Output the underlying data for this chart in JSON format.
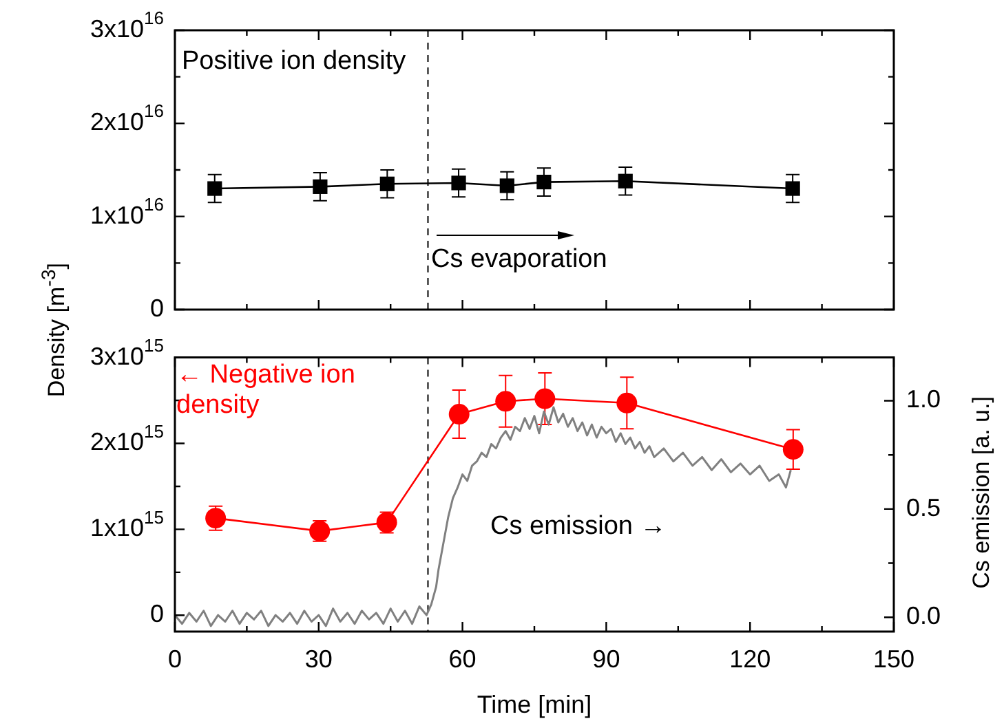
{
  "chart_data": [
    {
      "type": "line",
      "ylabel": "Density [m$^{-3}$]",
      "xlim": [
        0,
        150
      ],
      "xticks": [
        0,
        30,
        60,
        90,
        120,
        150
      ],
      "ylim": [
        0,
        3e+16
      ],
      "yticks": [
        0,
        {
          "value": 1e+16,
          "label": "1x10$^{16}$"
        },
        {
          "value": 2e+16,
          "label": "2x10$^{16}$"
        },
        {
          "value": 3e+16,
          "label": "3x10$^{16}$"
        }
      ],
      "tick_labels": "y",
      "grid": false,
      "legend": "top left",
      "series": [
        {
          "name": "Positive ion density",
          "color": "#000000",
          "marker": "square",
          "x": [
            8.3,
            30.3,
            44.3,
            59.2,
            69.3,
            77,
            94,
            128.9
          ],
          "values": [
            1.3e+16,
            1.32e+16,
            1.35e+16,
            1.36e+16,
            1.33e+16,
            1.37e+16,
            1.38e+16,
            1.3e+16
          ],
          "errors": [
            1500000000000000.0,
            1500000000000000.0,
            1500000000000000.0,
            1500000000000000.0,
            1500000000000000.0,
            1500000000000000.0,
            1500000000000000.0,
            1500000000000000.0
          ]
        }
      ],
      "ref_lines": [
        {
          "axis": "x",
          "value": 52.8,
          "line_style": "dashed",
          "color": "#000000"
        }
      ],
      "annotations": [
        "Cs evaporation"
      ]
    },
    {
      "type": "line",
      "xlabel": "Time [min]",
      "y2label": "Cs emission [a. u.]",
      "xlim": [
        0,
        150
      ],
      "xticks": [
        0,
        30,
        60,
        90,
        120,
        150
      ],
      "ylim": [
        -190000000000000.0,
        3000000000000000.0
      ],
      "yticks": [
        0,
        {
          "value": 1000000000000000.0,
          "label": "1x10$^{15}$"
        },
        {
          "value": 2000000000000000.0,
          "label": "2x10$^{15}$"
        },
        {
          "value": 3000000000000000.0,
          "label": "3x10$^{15}$"
        }
      ],
      "y2lim": [
        -0.066,
        1.2
      ],
      "y2ticks": [
        {
          "value": 0,
          "label": "0.0"
        },
        {
          "value": 0.5,
          "label": "0.5"
        },
        {
          "value": 1,
          "label": "1.0"
        }
      ],
      "grid": false,
      "legend": false,
      "series": [
        {
          "name": "← Negative ion density",
          "color": "#ff0000",
          "marker": "circle",
          "x": [
            8.5,
            30.2,
            44.2,
            59.3,
            69,
            77.2,
            94.3,
            129
          ],
          "values": [
            1130000000000000.0,
            980000000000000.0,
            1080000000000000.0,
            2340000000000000.0,
            2490000000000000.0,
            2520000000000000.0,
            2470000000000000.0,
            1930000000000000.0
          ],
          "errors": [
            140000000000000.0,
            120000000000000.0,
            120000000000000.0,
            280000000000000.0,
            300000000000000.0,
            300000000000000.0,
            300000000000000.0,
            230000000000000.0
          ]
        },
        {
          "name": "Cs emission →",
          "color": "#808080",
          "marker": "none",
          "axis": "y2",
          "x": [
            0,
            1.5,
            3,
            4.5,
            6,
            7.5,
            9,
            10.5,
            12,
            13.5,
            15,
            16.5,
            18,
            19.5,
            21,
            22.5,
            24,
            25.5,
            27,
            28.5,
            30,
            31.5,
            33,
            34.5,
            36,
            37.5,
            39,
            40.5,
            42,
            43.5,
            45,
            46.5,
            48,
            49.5,
            51,
            52.5,
            53.5,
            54.5,
            55,
            56,
            57,
            58,
            59,
            60,
            61,
            62,
            63,
            64,
            65,
            66,
            67,
            68,
            69,
            70,
            71,
            72,
            73,
            74,
            75,
            76,
            77,
            78,
            79,
            80,
            81,
            82,
            83,
            84,
            85,
            86,
            87,
            88,
            89,
            90,
            91,
            92,
            93,
            94,
            95,
            96,
            97,
            98,
            99,
            100,
            102,
            104,
            106,
            108,
            110,
            112,
            114,
            116,
            118,
            120,
            122,
            124,
            126,
            127.5,
            128.5
          ],
          "values": [
            0.01,
            -0.03,
            0.02,
            -0.02,
            0.03,
            -0.04,
            0.01,
            -0.02,
            0.03,
            -0.03,
            0.02,
            -0.01,
            0.03,
            -0.04,
            0.01,
            -0.02,
            0.02,
            -0.03,
            0.03,
            -0.02,
            0.01,
            -0.04,
            0.04,
            -0.02,
            0.02,
            -0.03,
            0.03,
            -0.01,
            0.02,
            -0.03,
            0.04,
            -0.02,
            0.03,
            -0.03,
            0.05,
            0.01,
            0.06,
            0.14,
            0.22,
            0.34,
            0.46,
            0.55,
            0.6,
            0.66,
            0.63,
            0.7,
            0.72,
            0.76,
            0.74,
            0.8,
            0.78,
            0.83,
            0.86,
            0.82,
            0.88,
            0.86,
            0.92,
            0.87,
            0.93,
            0.85,
            0.95,
            0.89,
            0.97,
            0.9,
            0.94,
            0.88,
            0.92,
            0.86,
            0.9,
            0.84,
            0.89,
            0.83,
            0.88,
            0.85,
            0.87,
            0.81,
            0.85,
            0.8,
            0.83,
            0.78,
            0.81,
            0.76,
            0.79,
            0.74,
            0.78,
            0.72,
            0.76,
            0.7,
            0.74,
            0.68,
            0.73,
            0.67,
            0.71,
            0.66,
            0.7,
            0.63,
            0.66,
            0.6,
            0.68
          ]
        }
      ],
      "ref_lines": [
        {
          "axis": "x",
          "value": 52.8,
          "line_style": "dashed",
          "color": "#000000"
        }
      ]
    }
  ]
}
